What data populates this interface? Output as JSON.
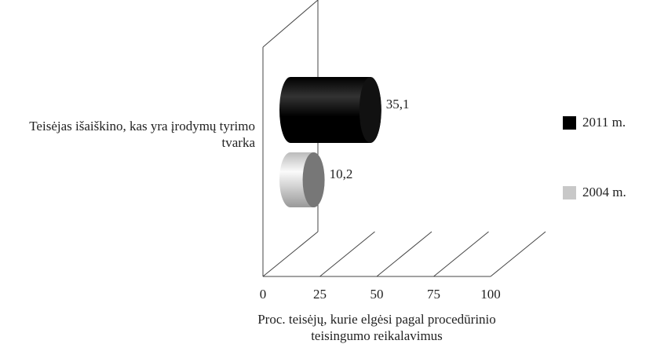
{
  "chart_data": {
    "type": "bar3d_horizontal",
    "categories": [
      "Teisėjas išaiškino, kas yra įrodymų tyrimo tvarka"
    ],
    "series": [
      {
        "name": "2011 m.",
        "color": "#000000",
        "values": [
          35.1
        ],
        "value_labels": [
          "35,1"
        ]
      },
      {
        "name": "2004 m.",
        "color": "#c8c8c8",
        "values": [
          10.2
        ],
        "value_labels": [
          "10,2"
        ]
      }
    ],
    "xlabel": "Proc. teisėjų, kurie elgėsi pagal procedūrinio teisingumo reikalavimus",
    "xlim": [
      0,
      100
    ],
    "xticks": [
      0,
      25,
      50,
      75,
      100
    ],
    "grid": true,
    "legend": "right"
  }
}
